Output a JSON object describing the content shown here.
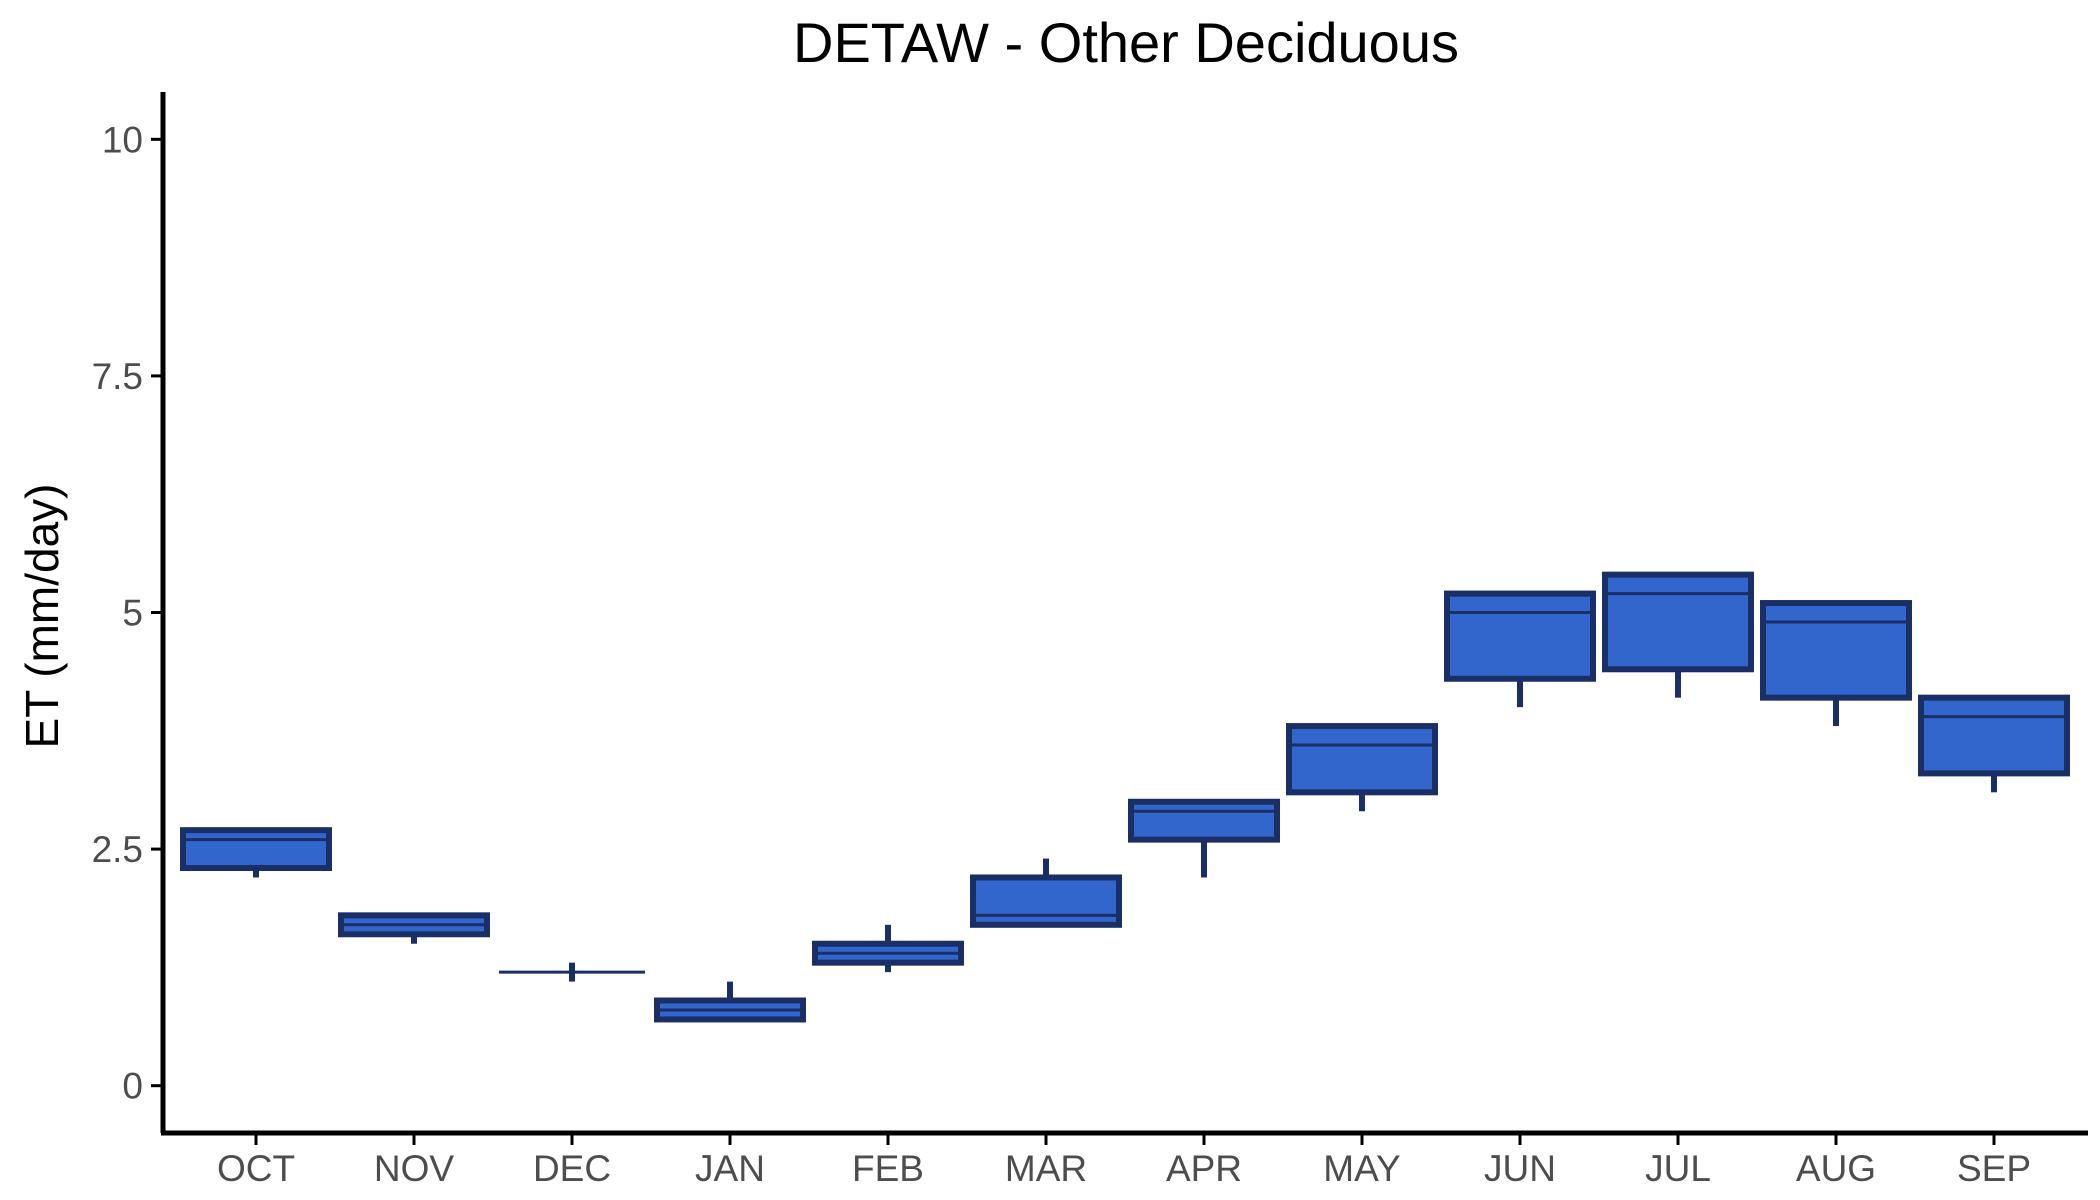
{
  "chart_data": {
    "type": "boxplot",
    "title": "DETAW - Other Deciduous",
    "xlabel": "",
    "ylabel": "ET (mm/day)",
    "ylim": [
      -0.5,
      10.5
    ],
    "yticks": [
      0,
      2.5,
      5,
      7.5,
      10
    ],
    "ytick_labels": [
      "0",
      "2.5",
      "5",
      "7.5",
      "10"
    ],
    "grid": false,
    "legend": "none",
    "categories": [
      "OCT",
      "NOV",
      "DEC",
      "JAN",
      "FEB",
      "MAR",
      "APR",
      "MAY",
      "JUN",
      "JUL",
      "AUG",
      "SEP"
    ],
    "boxes": [
      {
        "category": "OCT",
        "min": 2.2,
        "q1": 2.3,
        "median": 2.6,
        "q3": 2.7,
        "max": 2.7
      },
      {
        "category": "NOV",
        "min": 1.5,
        "q1": 1.6,
        "median": 1.7,
        "q3": 1.8,
        "max": 1.8
      },
      {
        "category": "DEC",
        "min": 1.1,
        "q1": 1.2,
        "median": 1.2,
        "q3": 1.2,
        "max": 1.3
      },
      {
        "category": "JAN",
        "min": 0.7,
        "q1": 0.7,
        "median": 0.8,
        "q3": 0.9,
        "max": 1.1
      },
      {
        "category": "FEB",
        "min": 1.2,
        "q1": 1.3,
        "median": 1.4,
        "q3": 1.5,
        "max": 1.7
      },
      {
        "category": "MAR",
        "min": 1.7,
        "q1": 1.7,
        "median": 1.8,
        "q3": 2.2,
        "max": 2.4
      },
      {
        "category": "APR",
        "min": 2.2,
        "q1": 2.6,
        "median": 2.9,
        "q3": 3.0,
        "max": 3.0
      },
      {
        "category": "MAY",
        "min": 2.9,
        "q1": 3.1,
        "median": 3.6,
        "q3": 3.8,
        "max": 3.8
      },
      {
        "category": "JUN",
        "min": 4.0,
        "q1": 4.3,
        "median": 5.0,
        "q3": 5.2,
        "max": 5.2
      },
      {
        "category": "JUL",
        "min": 4.1,
        "q1": 4.4,
        "median": 5.2,
        "q3": 5.4,
        "max": 5.4
      },
      {
        "category": "AUG",
        "min": 3.8,
        "q1": 4.1,
        "median": 4.9,
        "q3": 5.1,
        "max": 5.1
      },
      {
        "category": "SEP",
        "min": 3.1,
        "q1": 3.3,
        "median": 3.9,
        "q3": 4.1,
        "max": 4.1
      }
    ],
    "colors": {
      "box_fill": "#3366cc",
      "box_edge": "#1a2f66",
      "axis": "#000000",
      "tick_label": "#4d4d4d"
    }
  }
}
